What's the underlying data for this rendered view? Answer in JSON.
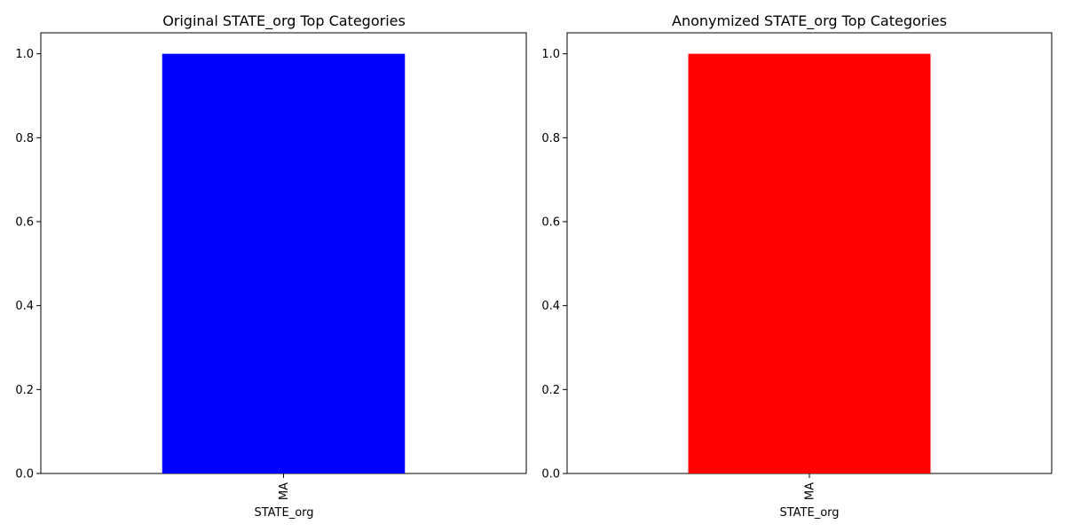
{
  "chart_data": [
    {
      "type": "bar",
      "title": "Original STATE_org Top Categories",
      "xlabel": "STATE_org",
      "ylabel": "",
      "categories": [
        "MA"
      ],
      "values": [
        1.0
      ],
      "ylim": [
        0,
        1.05
      ],
      "yticks": [
        "0.0",
        "0.2",
        "0.4",
        "0.6",
        "0.8",
        "1.0"
      ],
      "bar_color": "#0000ff",
      "grid": false
    },
    {
      "type": "bar",
      "title": "Anonymized STATE_org Top Categories",
      "xlabel": "STATE_org",
      "ylabel": "",
      "categories": [
        "MA"
      ],
      "values": [
        1.0
      ],
      "ylim": [
        0,
        1.05
      ],
      "yticks": [
        "0.0",
        "0.2",
        "0.4",
        "0.6",
        "0.8",
        "1.0"
      ],
      "bar_color": "#ff0000",
      "grid": false
    }
  ]
}
